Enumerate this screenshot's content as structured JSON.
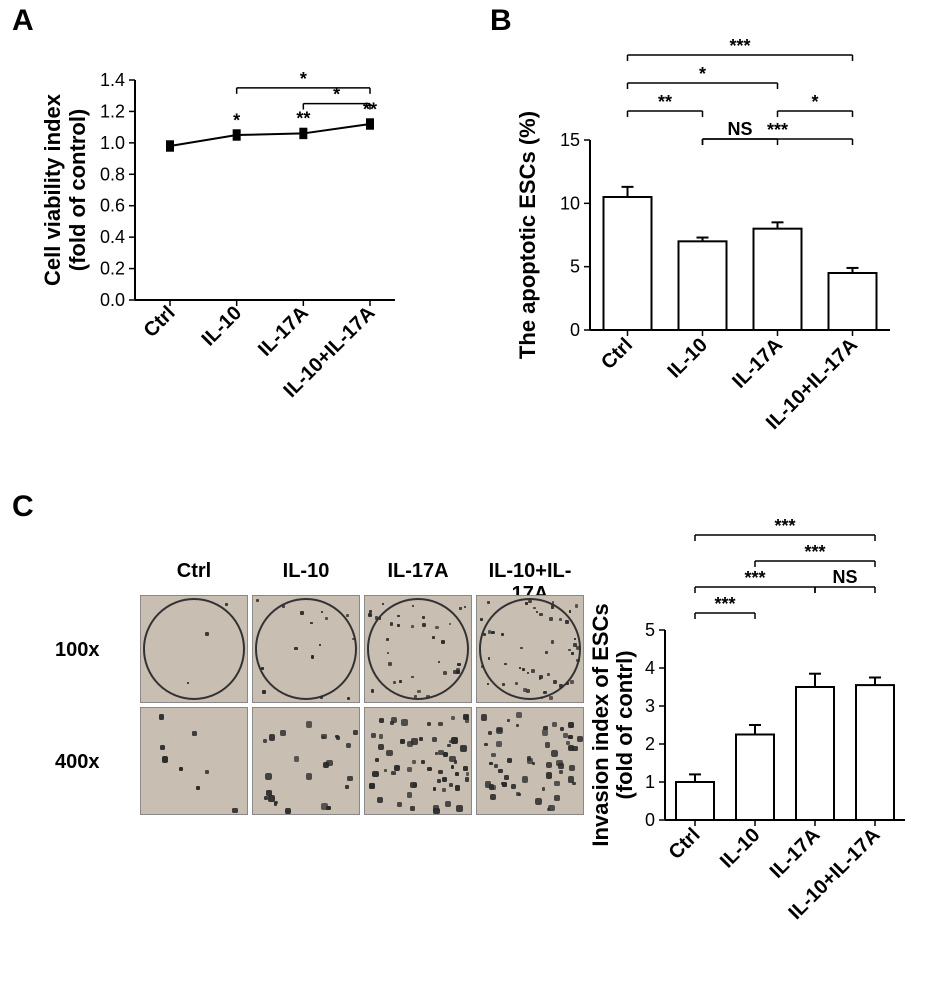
{
  "panelA": {
    "label": "A",
    "ylabel1": "Cell viability index",
    "ylabel2": "(fold of control)",
    "ylim": [
      0,
      1.4
    ],
    "yticks": [
      0.0,
      0.2,
      0.4,
      0.6,
      0.8,
      1.0,
      1.2,
      1.4
    ],
    "categories": [
      "Ctrl",
      "IL-10",
      "IL-17A",
      "IL-10+IL-17A"
    ],
    "values": [
      0.98,
      1.05,
      1.06,
      1.12
    ],
    "errors": [
      0.03,
      0.03,
      0.03,
      0.03
    ],
    "point_sigs": [
      "",
      "*",
      "**",
      "**"
    ],
    "brackets": [
      {
        "from": 1,
        "to": 3,
        "label": "*",
        "y": 1.35
      },
      {
        "from": 2,
        "to": 3,
        "label": "*",
        "y": 1.25
      }
    ]
  },
  "panelB": {
    "label": "B",
    "ylabel": "The apoptotic ESCs (%)",
    "ylim": [
      0,
      15
    ],
    "yticks": [
      0,
      5,
      10,
      15
    ],
    "categories": [
      "Ctrl",
      "IL-10",
      "IL-17A",
      "IL-10+IL-17A"
    ],
    "values": [
      10.5,
      7.0,
      8.0,
      4.5
    ],
    "errors": [
      0.8,
      0.3,
      0.5,
      0.4
    ],
    "bar_color": "#ffffff",
    "brackets": [
      {
        "from": 0,
        "to": 3,
        "label": "***",
        "level": 0
      },
      {
        "from": 0,
        "to": 2,
        "label": "*",
        "level": 1
      },
      {
        "from": 0,
        "to": 1,
        "label": "**",
        "level": 2
      },
      {
        "from": 2,
        "to": 3,
        "label": "*",
        "level": 2
      },
      {
        "from": 1,
        "to": 2,
        "label": "NS",
        "level": 3
      },
      {
        "from": 1,
        "to": 3,
        "label": "***",
        "level": 3
      }
    ]
  },
  "panelC": {
    "label": "C",
    "col_headers": [
      "Ctrl",
      "IL-10",
      "IL-17A",
      "IL-10+IL-17A"
    ],
    "row_headers": [
      "100x",
      "400x"
    ],
    "micrograph_bg": "#c8beb2",
    "densities": [
      [
        3,
        15,
        35,
        50
      ],
      [
        8,
        25,
        60,
        55
      ]
    ],
    "chart": {
      "ylabel1": "Invasion index of ESCs",
      "ylabel2": "(fold of contrl)",
      "ylim": [
        0,
        5
      ],
      "yticks": [
        0,
        1,
        2,
        3,
        4,
        5
      ],
      "categories": [
        "Ctrl",
        "IL-10",
        "IL-17A",
        "IL-10+IL-17A"
      ],
      "values": [
        1.0,
        2.25,
        3.5,
        3.55
      ],
      "errors": [
        0.2,
        0.25,
        0.35,
        0.2
      ],
      "bar_color": "#ffffff",
      "brackets": [
        {
          "from": 0,
          "to": 3,
          "label": "***",
          "level": 0
        },
        {
          "from": 1,
          "to": 3,
          "label": "***",
          "level": 1
        },
        {
          "from": 0,
          "to": 2,
          "label": "***",
          "level": 2
        },
        {
          "from": 2,
          "to": 3,
          "label": "NS",
          "level": 2
        },
        {
          "from": 0,
          "to": 1,
          "label": "***",
          "level": 3
        }
      ]
    }
  }
}
